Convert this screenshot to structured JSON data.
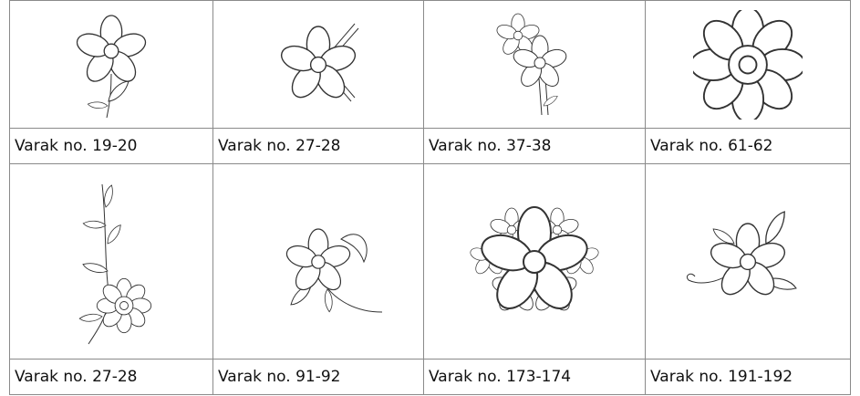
{
  "table": {
    "caption_rows": [
      [
        "Varak no. 19-20",
        "Varak no. 27-28",
        "Varak no. 37-38",
        "Varak no. 61-62"
      ],
      [
        "Varak no. 27-28",
        "Varak no. 91-92",
        "Varak no. 173-174",
        "Varak no. 191-192"
      ]
    ]
  }
}
